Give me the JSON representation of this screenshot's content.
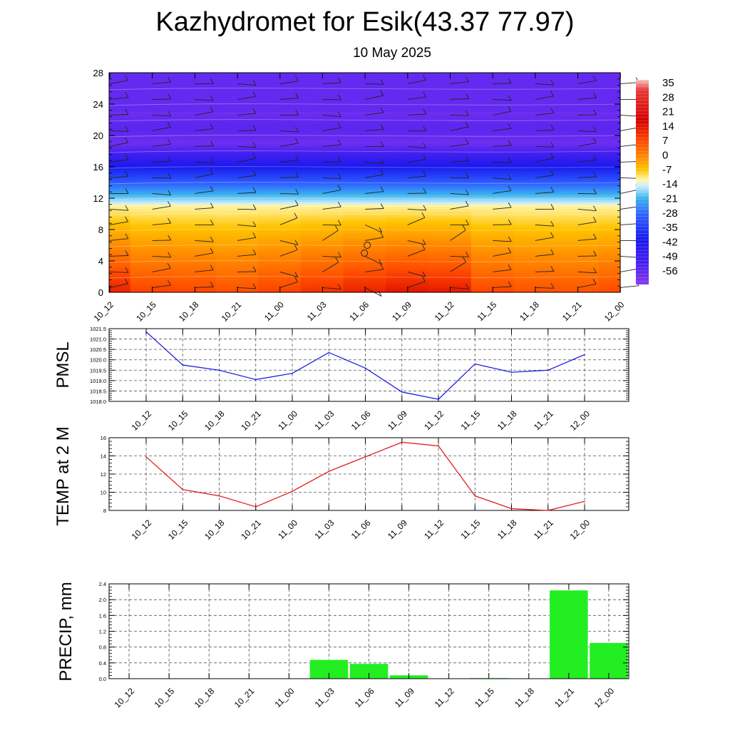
{
  "title": "Kazhydromet for Esik(43.37 77.97)",
  "subtitle": "10 May 2025",
  "colors": {
    "pmsl_line": "#1010e0",
    "temp_line": "#e01010",
    "precip_bar": "#22ee22"
  },
  "chart_data": [
    {
      "type": "heatmap",
      "title": "",
      "categories": [
        "10_12",
        "10_15",
        "10_18",
        "10_21",
        "11_00",
        "11_03",
        "11_06",
        "11_09",
        "11_12",
        "11_15",
        "11_18",
        "11_21",
        "12_00"
      ],
      "y_ticks": [
        0,
        4,
        8,
        12,
        16,
        20,
        24,
        28
      ],
      "ylim": [
        0,
        28
      ],
      "colorbar_labels": [
        "35",
        "28",
        "21",
        "14",
        "7",
        "0",
        "-7",
        "-14",
        "-21",
        "-28",
        "-35",
        "-42",
        "-49",
        "-56"
      ],
      "colorbar_range": [
        -60,
        38
      ],
      "surface_temperature_by_time": [
        14,
        10,
        9.5,
        8.4,
        10,
        12,
        14,
        15.5,
        15,
        9.5,
        8.2,
        8,
        9
      ],
      "freezing_level": 11.2,
      "wind_barbs": true
    },
    {
      "type": "line",
      "ylabel": "PMSL",
      "categories": [
        "10_12",
        "10_15",
        "10_18",
        "10_21",
        "11_00",
        "11_03",
        "11_06",
        "11_09",
        "11_12",
        "11_15",
        "11_18",
        "11_21",
        "12_00"
      ],
      "values": [
        1021.35,
        1019.75,
        1019.5,
        1019.05,
        1019.35,
        1020.35,
        1019.6,
        1018.45,
        1018.1,
        1019.8,
        1019.4,
        1019.5,
        1020.25
      ],
      "y_ticks": [
        "1018.0",
        "1018.5",
        "1019.0",
        "1019.5",
        "1020.0",
        "1020.5",
        "1021.0",
        "1021.5"
      ],
      "ylim": [
        1018.0,
        1021.5
      ],
      "grid": true
    },
    {
      "type": "line",
      "ylabel": "TEMP at 2 M",
      "categories": [
        "10_12",
        "10_15",
        "10_18",
        "10_21",
        "11_00",
        "11_03",
        "11_06",
        "11_09",
        "11_12",
        "11_15",
        "11_18",
        "11_21",
        "12_00"
      ],
      "values": [
        13.9,
        10.3,
        9.6,
        8.4,
        10.1,
        12.3,
        13.9,
        15.5,
        15.1,
        9.6,
        8.2,
        8.0,
        9.0
      ],
      "y_ticks": [
        "8",
        "10",
        "12",
        "14",
        "16"
      ],
      "ylim": [
        8,
        16
      ],
      "grid": true
    },
    {
      "type": "bar",
      "ylabel": "PRECIP, mm",
      "categories": [
        "10_12",
        "10_15",
        "10_18",
        "10_21",
        "11_00",
        "11_03",
        "11_06",
        "11_09",
        "11_12",
        "11_15",
        "11_18",
        "11_21",
        "12_00"
      ],
      "values": [
        0,
        0,
        0,
        0,
        0,
        0.48,
        0.38,
        0.09,
        0,
        0.02,
        0,
        2.24,
        0.91
      ],
      "y_ticks": [
        "0.0",
        "0.4",
        "0.8",
        "1.2",
        "1.6",
        "2.0",
        "2.4"
      ],
      "ylim": [
        0,
        2.4
      ],
      "grid": true
    }
  ]
}
